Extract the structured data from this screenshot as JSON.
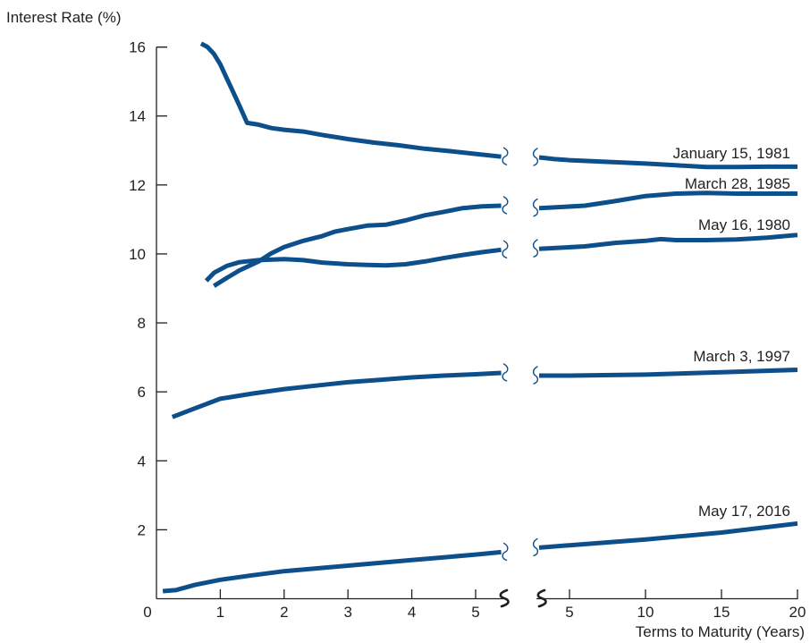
{
  "chart_data": {
    "type": "line",
    "title": "",
    "ylabel": "Interest Rate (%)",
    "xlabel": "Terms to Maturity (Years)",
    "ylim": [
      0,
      16
    ],
    "yticks": [
      2,
      4,
      6,
      8,
      10,
      12,
      14,
      16
    ],
    "origin_label": "0",
    "x_segments": [
      {
        "xlim": [
          0,
          5.5
        ],
        "ticks": [
          1,
          2,
          3,
          4,
          5
        ]
      },
      {
        "xlim": [
          3,
          20
        ],
        "ticks": [
          5,
          10,
          15,
          20
        ]
      }
    ],
    "line_color": "#0d4f8b",
    "series": [
      {
        "name": "January 15, 1981",
        "segments": [
          [
            [
              0.7,
              16.1
            ],
            [
              0.8,
              16.0
            ],
            [
              0.9,
              15.8
            ],
            [
              1.0,
              15.5
            ],
            [
              1.1,
              15.1
            ],
            [
              1.2,
              14.7
            ],
            [
              1.3,
              14.3
            ],
            [
              1.42,
              13.8
            ],
            [
              1.6,
              13.75
            ],
            [
              1.8,
              13.65
            ],
            [
              2.0,
              13.6
            ],
            [
              2.3,
              13.55
            ],
            [
              2.6,
              13.45
            ],
            [
              3.0,
              13.33
            ],
            [
              3.4,
              13.23
            ],
            [
              3.8,
              13.15
            ],
            [
              4.2,
              13.05
            ],
            [
              4.6,
              12.98
            ],
            [
              5.0,
              12.9
            ],
            [
              5.4,
              12.82
            ]
          ],
          [
            [
              3.0,
              12.8
            ],
            [
              4.0,
              12.75
            ],
            [
              5.0,
              12.72
            ],
            [
              7.0,
              12.68
            ],
            [
              10.0,
              12.62
            ],
            [
              12.0,
              12.57
            ],
            [
              14.0,
              12.52
            ],
            [
              16.0,
              12.52
            ],
            [
              18.0,
              12.53
            ],
            [
              20.0,
              12.53
            ]
          ]
        ]
      },
      {
        "name": "March 28, 1985",
        "segments": [
          [
            [
              0.9,
              9.07
            ],
            [
              1.1,
              9.3
            ],
            [
              1.3,
              9.52
            ],
            [
              1.6,
              9.78
            ],
            [
              1.8,
              10.02
            ],
            [
              2.0,
              10.2
            ],
            [
              2.3,
              10.38
            ],
            [
              2.6,
              10.52
            ],
            [
              2.8,
              10.65
            ],
            [
              3.0,
              10.72
            ],
            [
              3.3,
              10.82
            ],
            [
              3.6,
              10.85
            ],
            [
              3.9,
              10.97
            ],
            [
              4.2,
              11.12
            ],
            [
              4.5,
              11.22
            ],
            [
              4.8,
              11.33
            ],
            [
              5.1,
              11.38
            ],
            [
              5.4,
              11.4
            ]
          ],
          [
            [
              3.0,
              11.33
            ],
            [
              4.0,
              11.35
            ],
            [
              6.0,
              11.4
            ],
            [
              8.0,
              11.53
            ],
            [
              10.0,
              11.68
            ],
            [
              12.0,
              11.75
            ],
            [
              14.0,
              11.77
            ],
            [
              16.0,
              11.75
            ],
            [
              18.0,
              11.75
            ],
            [
              20.0,
              11.75
            ]
          ]
        ]
      },
      {
        "name": "May 16, 1980",
        "segments": [
          [
            [
              0.78,
              9.22
            ],
            [
              0.9,
              9.45
            ],
            [
              1.1,
              9.65
            ],
            [
              1.3,
              9.76
            ],
            [
              1.6,
              9.82
            ],
            [
              2.0,
              9.85
            ],
            [
              2.3,
              9.82
            ],
            [
              2.6,
              9.75
            ],
            [
              3.0,
              9.7
            ],
            [
              3.3,
              9.68
            ],
            [
              3.6,
              9.67
            ],
            [
              3.9,
              9.7
            ],
            [
              4.2,
              9.78
            ],
            [
              4.5,
              9.88
            ],
            [
              4.8,
              9.97
            ],
            [
              5.1,
              10.05
            ],
            [
              5.4,
              10.12
            ]
          ],
          [
            [
              3.0,
              10.15
            ],
            [
              4.0,
              10.17
            ],
            [
              6.0,
              10.22
            ],
            [
              8.0,
              10.32
            ],
            [
              10.0,
              10.38
            ],
            [
              11.0,
              10.43
            ],
            [
              12.0,
              10.4
            ],
            [
              14.0,
              10.4
            ],
            [
              16.0,
              10.42
            ],
            [
              18.0,
              10.47
            ],
            [
              20.0,
              10.55
            ]
          ]
        ]
      },
      {
        "name": "March 3, 1997",
        "segments": [
          [
            [
              0.25,
              5.27
            ],
            [
              0.6,
              5.52
            ],
            [
              1.0,
              5.8
            ],
            [
              1.5,
              5.95
            ],
            [
              2.0,
              6.08
            ],
            [
              2.5,
              6.18
            ],
            [
              3.0,
              6.28
            ],
            [
              3.5,
              6.35
            ],
            [
              4.0,
              6.42
            ],
            [
              4.5,
              6.47
            ],
            [
              5.0,
              6.51
            ],
            [
              5.4,
              6.55
            ]
          ],
          [
            [
              3.0,
              6.47
            ],
            [
              5.0,
              6.47
            ],
            [
              10.0,
              6.5
            ],
            [
              15.0,
              6.57
            ],
            [
              20.0,
              6.64
            ]
          ]
        ]
      },
      {
        "name": "May 17, 2016",
        "segments": [
          [
            [
              0.1,
              0.22
            ],
            [
              0.3,
              0.25
            ],
            [
              0.6,
              0.4
            ],
            [
              1.0,
              0.55
            ],
            [
              1.5,
              0.68
            ],
            [
              2.0,
              0.8
            ],
            [
              2.5,
              0.88
            ],
            [
              3.0,
              0.96
            ],
            [
              3.5,
              1.04
            ],
            [
              4.0,
              1.12
            ],
            [
              4.5,
              1.2
            ],
            [
              5.0,
              1.28
            ],
            [
              5.4,
              1.35
            ]
          ],
          [
            [
              3.0,
              1.48
            ],
            [
              5.0,
              1.55
            ],
            [
              10.0,
              1.72
            ],
            [
              15.0,
              1.92
            ],
            [
              20.0,
              2.18
            ]
          ]
        ]
      }
    ]
  }
}
